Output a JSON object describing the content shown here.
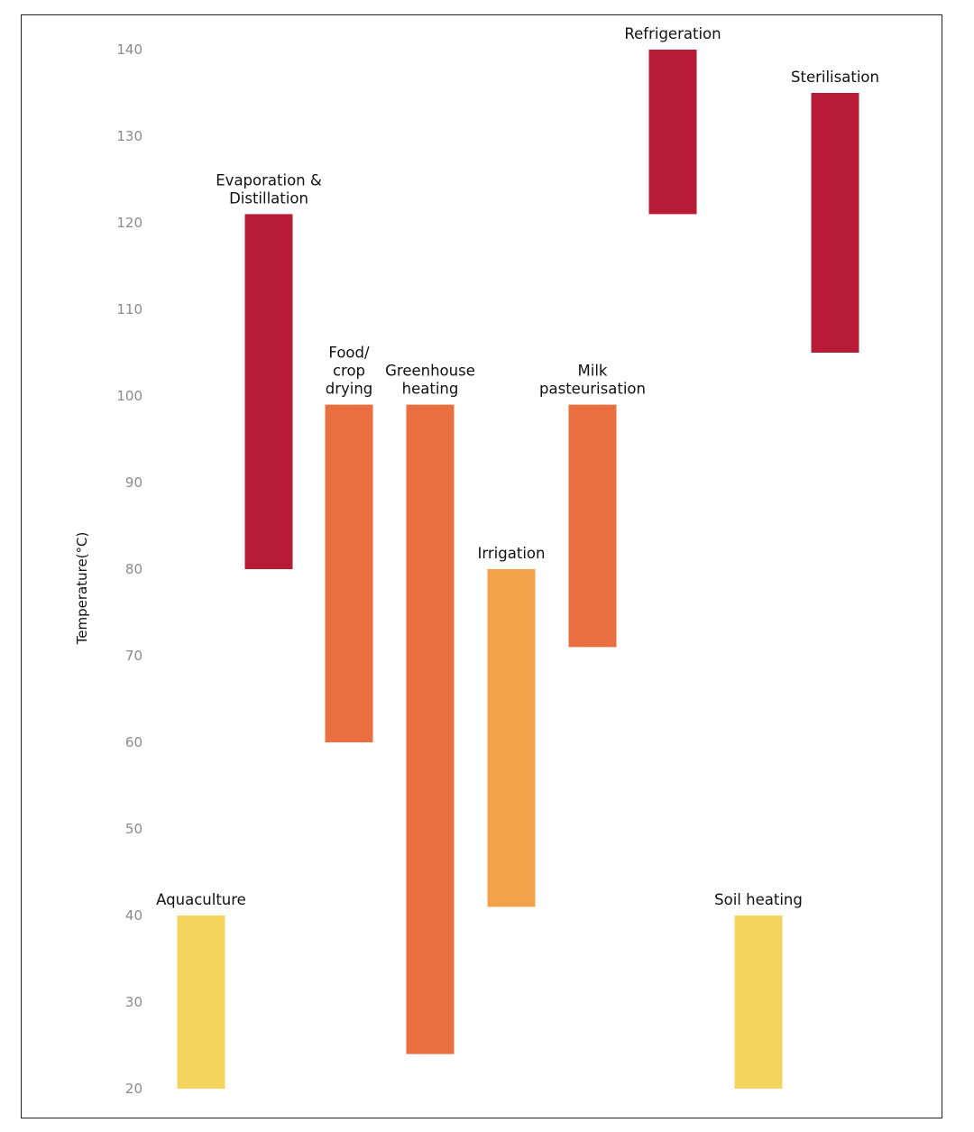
{
  "chart_data": {
    "type": "bar",
    "ylabel": "Temperature(°C)",
    "ylim": [
      20,
      140
    ],
    "ticks": [
      "20",
      "30",
      "40",
      "50",
      "60",
      "70",
      "80",
      "90",
      "100",
      "110",
      "120",
      "130",
      "140"
    ],
    "grid": false,
    "categories": [
      "Aquaculture",
      "Evaporation & Distillation",
      "Food/ crop drying",
      "Greenhouse heating",
      "Irrigation",
      "Milk pasteurisation",
      "Refrigeration",
      "Soil heating",
      "Sterilisation"
    ],
    "bars": [
      {
        "label_lines": [
          "Aquaculture"
        ],
        "low": 20,
        "high": 40,
        "color": "#F5D45E"
      },
      {
        "label_lines": [
          "Evaporation &",
          "Distillation"
        ],
        "low": 80,
        "high": 121,
        "color": "#B81B35"
      },
      {
        "label_lines": [
          "Food/",
          "crop",
          "drying"
        ],
        "low": 60,
        "high": 99,
        "color": "#E96F41"
      },
      {
        "label_lines": [
          "Greenhouse",
          "heating"
        ],
        "low": 24,
        "high": 99,
        "color": "#E96F41"
      },
      {
        "label_lines": [
          "Irrigation"
        ],
        "low": 41,
        "high": 80,
        "color": "#F4A14C"
      },
      {
        "label_lines": [
          "Milk",
          "pasteurisation"
        ],
        "low": 71,
        "high": 99,
        "color": "#E96F41"
      },
      {
        "label_lines": [
          "Refrigeration"
        ],
        "low": 121,
        "high": 140,
        "color": "#B81B35"
      },
      {
        "label_lines": [
          "Soil heating"
        ],
        "low": 20,
        "high": 40,
        "color": "#F5D45E"
      },
      {
        "label_lines": [
          "Sterilisation"
        ],
        "low": 105,
        "high": 135,
        "color": "#B81B35"
      }
    ]
  }
}
